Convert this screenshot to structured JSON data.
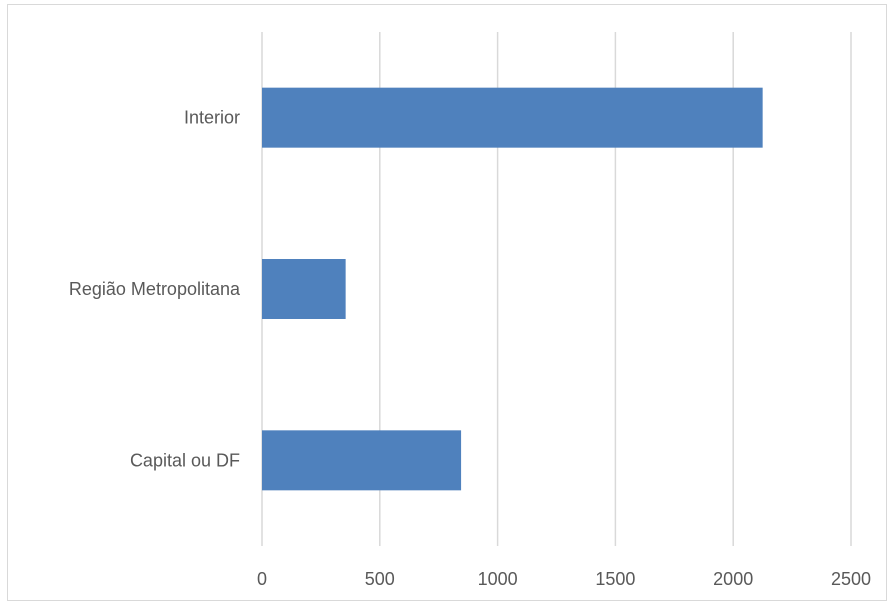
{
  "chart_data": {
    "type": "bar",
    "orientation": "horizontal",
    "categories": [
      "Interior",
      "Região Metropolitana",
      "Capital ou DF"
    ],
    "values": [
      2125,
      355,
      845
    ],
    "title": "",
    "xlabel": "",
    "ylabel": "",
    "xlim": [
      0,
      2500
    ],
    "x_ticks": [
      "0",
      "500",
      "1000",
      "1500",
      "2000",
      "2500"
    ],
    "grid": "vertical",
    "legend": "none",
    "bar_color": "#4f81bd",
    "grid_color": "#d9d9d9"
  }
}
